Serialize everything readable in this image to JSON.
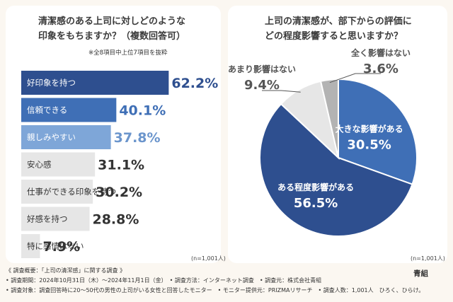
{
  "left_chart": {
    "title": "清潔感のある上司に対しどのような\n印象をもちますか？（複数回答可）",
    "note": "※全8項目中上位7項目を抜粋",
    "n_label": "(n=1,001人)",
    "chart_data": {
      "type": "bar",
      "orientation": "horizontal",
      "categories": [
        "好印象を持つ",
        "信頼できる",
        "親しみやすい",
        "安心感",
        "仕事ができる印象を持つ",
        "好感を持つ",
        "特に感情はない"
      ],
      "values": [
        62.2,
        40.1,
        37.8,
        31.1,
        30.2,
        28.8,
        7.9
      ],
      "value_labels": [
        "62.2%",
        "40.1%",
        "37.8%",
        "31.1%",
        "30.2%",
        "28.8%",
        "7.9%"
      ],
      "colors": [
        "#2e4f8f",
        "#3f6fb6",
        "#7ea6d8",
        "#e6e6e6",
        "#e6e6e6",
        "#e6e6e6",
        "#e6e6e6"
      ],
      "label_colors": [
        "#ffffff",
        "#ffffff",
        "#ffffff",
        "#333333",
        "#333333",
        "#333333",
        "#333333"
      ],
      "value_colors": [
        "#2e4f8f",
        "#3f6fb6",
        "#6b95cc",
        "#333333",
        "#333333",
        "#333333",
        "#333333"
      ]
    }
  },
  "right_chart": {
    "title": "上司の清潔感が、部下からの評価に\nどの程度影響すると思いますか？",
    "n_label": "(n=1,001人)",
    "chart_data": {
      "type": "pie",
      "categories": [
        "大きな影響がある",
        "ある程度影響がある",
        "あまり影響はない",
        "全く影響はない"
      ],
      "values": [
        30.5,
        56.5,
        9.4,
        3.6
      ],
      "value_labels": [
        "30.5%",
        "56.5%",
        "9.4%",
        "3.6%"
      ],
      "colors": [
        "#3f6fb6",
        "#2e4f8f",
        "#e6e6e6",
        "#b3b3b3"
      ]
    }
  },
  "footer": {
    "line1": "《 調査概要：「上司の清潔感」に関する調査 》",
    "line2": "• 調査期間：2024年10月31日（木）〜2024年11月1日（金）　• 調査方法：インターネット調査　• 調査元：株式会社青組",
    "line3": "• 調査対象：調査回答時に20〜50代の男性の上司がいる女性と回答したモニター　• モニター提供元：PRIZMAリサーチ　• 調査人数：1,001人　ひろく、ひらけ。",
    "brand": "青組"
  }
}
